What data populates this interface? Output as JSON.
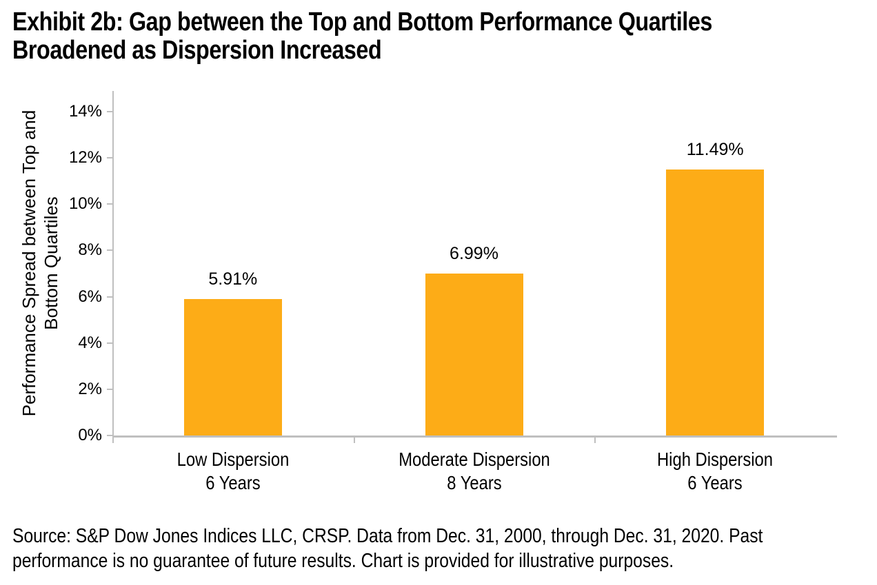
{
  "page": {
    "title_lines": [
      "Exhibit 2b: Gap between the Top and Bottom Performance Quartiles",
      "Broadened as Dispersion Increased"
    ],
    "source_lines": [
      "Source: S&P Dow Jones Indices LLC, CRSP.  Data from Dec. 31, 2000, through Dec. 31, 2020.  Past",
      "performance is no guarantee of future results.  Chart is provided for illustrative purposes."
    ]
  },
  "chart_data": {
    "type": "bar",
    "title": "Exhibit 2b: Gap between the Top and Bottom Performance Quartiles Broadened as Dispersion Increased",
    "categories": [
      "Low Dispersion\n6 Years",
      "Moderate Dispersion\n8 Years",
      "High Dispersion\n6 Years"
    ],
    "values": [
      5.91,
      6.99,
      11.49
    ],
    "value_labels": [
      "5.91%",
      "6.99%",
      "11.49%"
    ],
    "xlabel": "",
    "ylabel": "Performance Spread between Top and Bottom Quartiles",
    "ylim": [
      0,
      14
    ],
    "ytick_step": 2,
    "ytick_labels": [
      "0%",
      "2%",
      "4%",
      "6%",
      "8%",
      "10%",
      "12%",
      "14%"
    ],
    "bar_color": "#FDAC17",
    "axis_color": "#BFBFBF",
    "grid": false,
    "legend": false
  }
}
